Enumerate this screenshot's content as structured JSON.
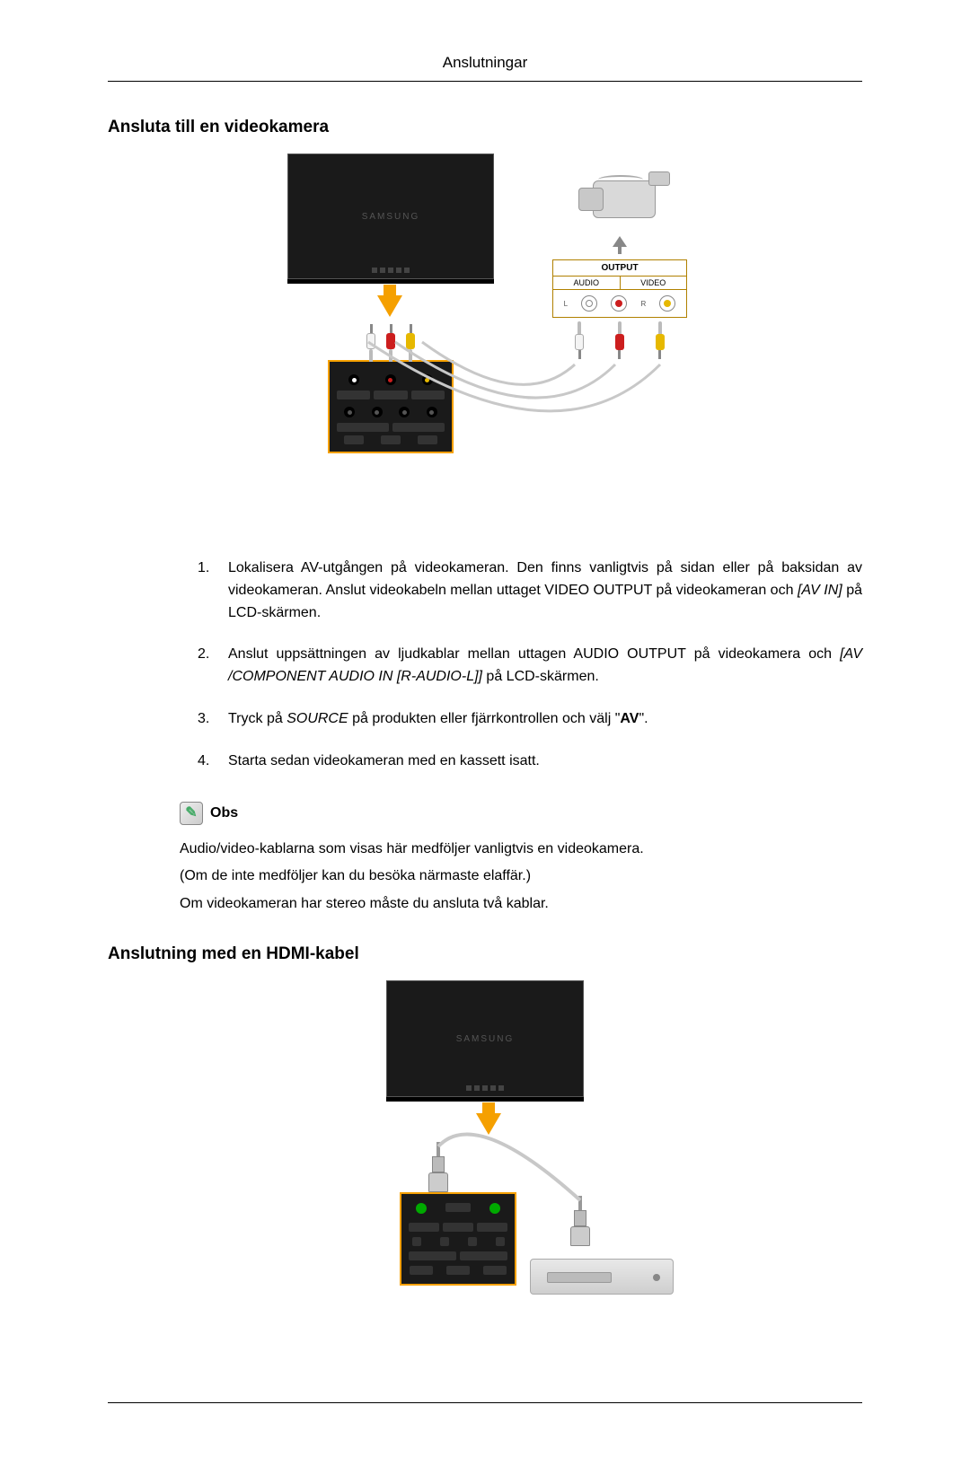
{
  "page_header": "Anslutningar",
  "section1": {
    "title": "Ansluta till en videokamera",
    "diagram": {
      "tv_brand": "SAMSUNG",
      "output_label": "OUTPUT",
      "output_audio_label": "AUDIO",
      "output_video_label": "VIDEO",
      "jack_L": "L",
      "jack_R": "R",
      "colors": {
        "rca_white": "#f4f4f4",
        "rca_red": "#cc1e1e",
        "rca_yellow": "#e6b800",
        "panel_border": "#f5a000",
        "arrow": "#f5a000",
        "cable": "#c8c8c8"
      }
    },
    "steps": [
      {
        "num": "1.",
        "parts": [
          {
            "t": "Lokalisera AV-utgången på videokameran. Den finns vanligtvis på sidan eller på baksidan av videokameran. Anslut videokabeln mellan uttaget VIDEO OUTPUT på videokameran och "
          },
          {
            "t": "[AV IN]",
            "i": true
          },
          {
            "t": " på LCD-skärmen."
          }
        ]
      },
      {
        "num": "2.",
        "parts": [
          {
            "t": "Anslut uppsättningen av ljudkablar mellan uttagen AUDIO OUTPUT på videokamera och "
          },
          {
            "t": "[AV /COMPONENT AUDIO IN [R-AUDIO-L]]",
            "i": true
          },
          {
            "t": " på LCD-skärmen."
          }
        ]
      },
      {
        "num": "3.",
        "parts": [
          {
            "t": "Tryck på "
          },
          {
            "t": "SOURCE",
            "i": true
          },
          {
            "t": " på produkten eller fjärrkontrollen och välj \""
          },
          {
            "t": "AV",
            "b": true
          },
          {
            "t": "\"."
          }
        ]
      },
      {
        "num": "4.",
        "parts": [
          {
            "t": "Starta sedan videokameran med en kassett isatt."
          }
        ]
      }
    ],
    "note_label": "Obs",
    "note_lines": [
      "Audio/video-kablarna som visas här medföljer vanligtvis en videokamera.",
      "(Om de inte medföljer kan du besöka närmaste elaffär.)",
      "Om videokameran har stereo måste du ansluta två kablar."
    ]
  },
  "section2": {
    "title": "Anslutning med en HDMI-kabel",
    "diagram": {
      "tv_brand": "SAMSUNG",
      "colors": {
        "panel_border": "#f5a000",
        "arrow": "#f5a000",
        "cable": "#c8c8c8"
      }
    }
  }
}
